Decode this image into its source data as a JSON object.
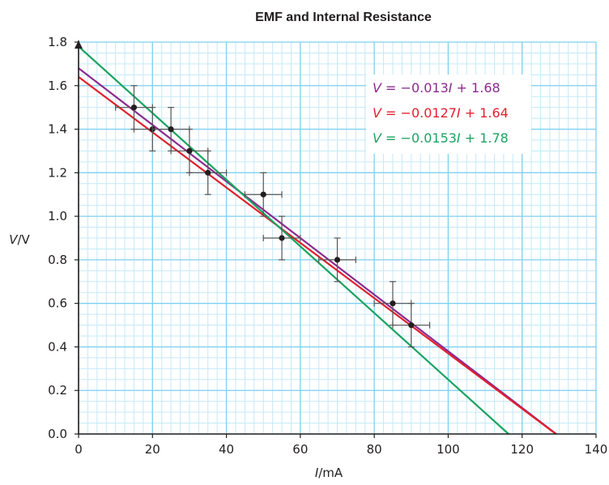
{
  "chart_data": {
    "type": "scatter",
    "title": "EMF and Internal Resistance",
    "xlabel_var": "I",
    "xlabel_unit": "/mA",
    "ylabel_var": "V",
    "ylabel_unit": "/V",
    "xlim": [
      0,
      140
    ],
    "ylim": [
      0,
      1.8
    ],
    "xticks": [
      "0",
      "20",
      "40",
      "60",
      "80",
      "100",
      "120",
      "140"
    ],
    "yticks": [
      "0.0",
      "0.2",
      "0.4",
      "0.6",
      "0.8",
      "1.0",
      "1.2",
      "1.4",
      "1.6",
      "1.8"
    ],
    "grid": true,
    "points": [
      {
        "x": 15,
        "y": 1.5,
        "xerr": 5,
        "yerr": 0.1
      },
      {
        "x": 20,
        "y": 1.4,
        "xerr": 5,
        "yerr": 0.1
      },
      {
        "x": 25,
        "y": 1.4,
        "xerr": 5,
        "yerr": 0.1
      },
      {
        "x": 30,
        "y": 1.3,
        "xerr": 5,
        "yerr": 0.1
      },
      {
        "x": 35,
        "y": 1.2,
        "xerr": 5,
        "yerr": 0.1
      },
      {
        "x": 50,
        "y": 1.1,
        "xerr": 5,
        "yerr": 0.1
      },
      {
        "x": 55,
        "y": 0.9,
        "xerr": 5,
        "yerr": 0.1
      },
      {
        "x": 70,
        "y": 0.8,
        "xerr": 5,
        "yerr": 0.1
      },
      {
        "x": 85,
        "y": 0.6,
        "xerr": 5,
        "yerr": 0.1
      },
      {
        "x": 90,
        "y": 0.5,
        "xerr": 5,
        "yerr": 0.1
      }
    ],
    "lines": [
      {
        "equation": [
          "V",
          " = −0.013",
          "I",
          " + 1.68"
        ],
        "slope": -0.013,
        "intercept": 1.68,
        "color": "#8b2a8f"
      },
      {
        "equation": [
          "V",
          " = −0.0127",
          "I",
          " + 1.64"
        ],
        "slope": -0.0127,
        "intercept": 1.64,
        "color": "#e2202d"
      },
      {
        "equation": [
          "V",
          " = −0.0153",
          "I",
          " + 1.78"
        ],
        "slope": -0.0153,
        "intercept": 1.78,
        "color": "#1aa360"
      }
    ],
    "legend_position": "top-right",
    "colors": {
      "grid_major": "#7fd0ef",
      "grid_minor": "#c5e9f7",
      "axis": "#231f20",
      "point": "#231f20"
    }
  }
}
